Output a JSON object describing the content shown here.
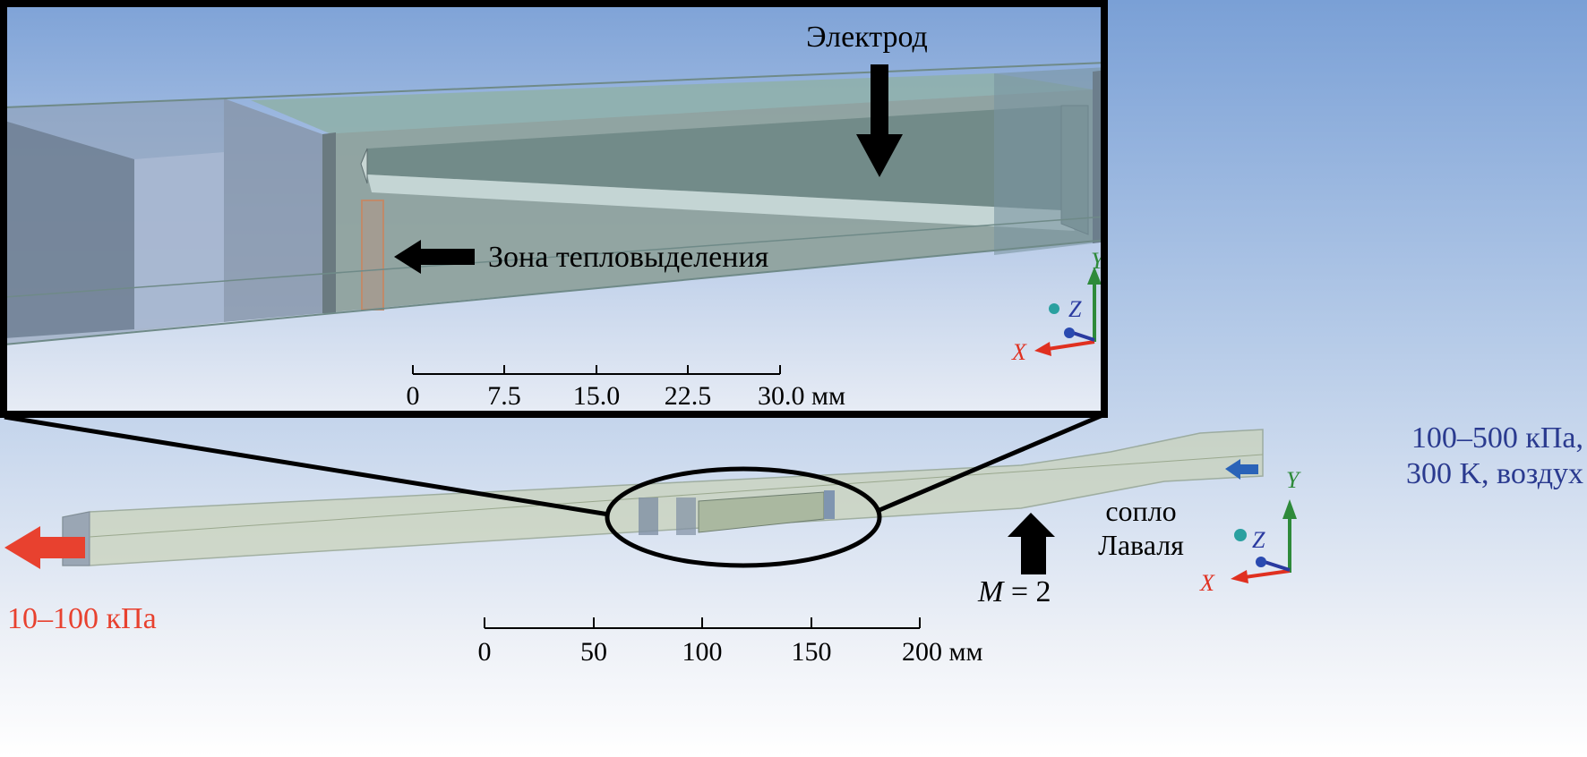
{
  "inset": {
    "electrode_label": "Электрод",
    "heat_zone_label": "Зона тепловыделения",
    "scale_ticks": [
      "0",
      "7.5",
      "15.0",
      "22.5",
      "30.0 мм"
    ]
  },
  "main": {
    "inlet_label_line1": "100–500 кПа,",
    "inlet_label_line2": "300 K, воздух",
    "outlet_label": "10–100 кПа",
    "nozzle_label_line1": "сопло",
    "nozzle_label_line2": "Лаваля",
    "mach_label_var": "M",
    "mach_label_rest": " = 2",
    "scale_ticks": [
      "0",
      "50",
      "100",
      "150",
      "200 мм"
    ]
  },
  "axes": {
    "x": "X",
    "y": "Y",
    "z": "Z"
  },
  "colors": {
    "outlet_arrow": "#e8412f",
    "inlet_arrow": "#2a63b8",
    "inlet_text": "#2a3a8f",
    "axis_x": "#e03020",
    "axis_y": "#2e8a3a",
    "axis_z": "#2a3aa0",
    "duct_fill": "#c9d2b8"
  }
}
